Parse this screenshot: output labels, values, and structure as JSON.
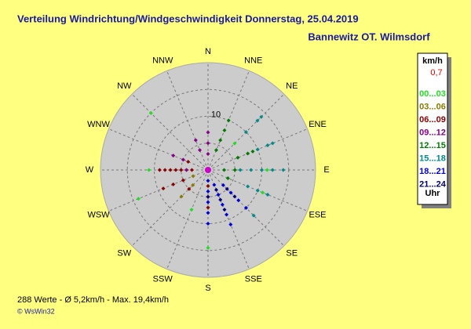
{
  "chart_data": {
    "type": "polar-scatter",
    "title": "Verteilung Windrichtung/Windgeschwindigkeit  Donnerstag, 25.04.2019",
    "subtitle": "Bannewitz OT. Wilmsdorf",
    "categories": [
      "N",
      "NNE",
      "NE",
      "ENE",
      "E",
      "ESE",
      "SE",
      "SSE",
      "S",
      "SSW",
      "SW",
      "WSW",
      "W",
      "WNW",
      "NW",
      "NNW"
    ],
    "rlim": [
      0,
      20
    ],
    "rticks": [
      10
    ],
    "rings": [
      5,
      10,
      15
    ],
    "grid": true,
    "legend_title": "km/h",
    "calm": "0,7",
    "legend_unit": "Uhr",
    "series": [
      {
        "name": "00...03",
        "color": "#22dd22",
        "directions": [
          12,
          14,
          11,
          8,
          9,
          2,
          5,
          4
        ],
        "values": [
          11,
          15,
          14,
          14.5,
          8,
          7,
          11,
          11
        ]
      },
      {
        "name": "03...06",
        "color": "#8a7a00",
        "directions": [
          10,
          10,
          11,
          8
        ],
        "values": [
          7,
          4,
          3,
          2
        ]
      },
      {
        "name": "06...09",
        "color": "#8b0000",
        "directions": [
          12,
          12,
          12,
          12,
          12,
          12,
          12,
          11,
          11,
          11,
          13,
          8,
          8,
          8,
          10
        ],
        "values": [
          3,
          4,
          5,
          6,
          7,
          8,
          9,
          5,
          7,
          9,
          4,
          3,
          5,
          7,
          5
        ]
      },
      {
        "name": "09...12",
        "color": "#880088",
        "directions": [
          0,
          0,
          0,
          15,
          15,
          13,
          13,
          12
        ],
        "values": [
          3,
          5,
          7,
          4,
          6,
          5,
          7,
          4
        ]
      },
      {
        "name": "12...15",
        "color": "#007a00",
        "directions": [
          1,
          1,
          1,
          1,
          3,
          3,
          3,
          4,
          4,
          5
        ],
        "values": [
          4,
          6,
          8,
          10,
          6,
          8,
          9,
          3,
          5,
          4
        ]
      },
      {
        "name": "15...18",
        "color": "#008b8b",
        "directions": [
          4,
          4,
          4,
          4,
          4,
          3,
          3,
          3,
          2,
          2,
          2,
          5,
          5,
          5,
          6
        ],
        "values": [
          6,
          8,
          10,
          12,
          14,
          10,
          12,
          13,
          10,
          13,
          14,
          8,
          10,
          12,
          12
        ]
      },
      {
        "name": "18...21",
        "color": "#0000dd",
        "directions": [
          7,
          7,
          7,
          7,
          7,
          6,
          6,
          6,
          6,
          8,
          8,
          8,
          8,
          8
        ],
        "values": [
          3,
          5,
          7,
          9,
          11,
          4,
          6,
          8,
          10,
          2,
          4,
          6,
          8,
          10
        ]
      },
      {
        "name": "21...24",
        "color": "#000080",
        "directions": [
          7,
          7,
          7,
          6,
          6,
          8
        ],
        "values": [
          4,
          6,
          8,
          5,
          7,
          5
        ]
      }
    ],
    "footer": "288 Werte   -   Ø 5,2km/h  -  Max. 19,4km/h",
    "credit": "© WsWin32"
  }
}
